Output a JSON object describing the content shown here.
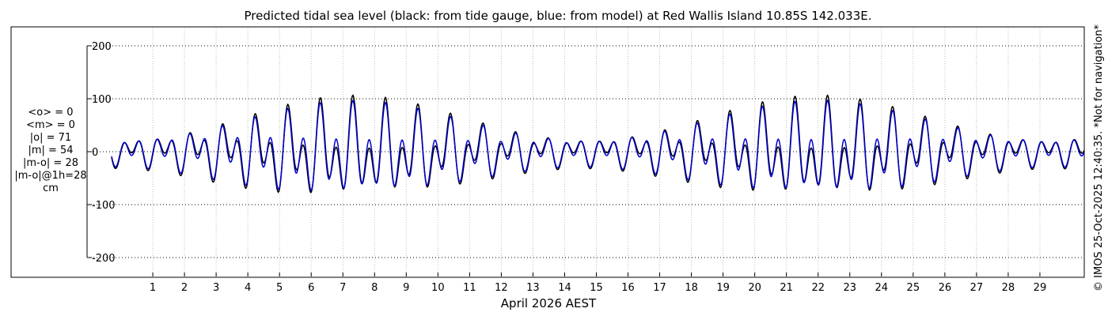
{
  "chart_data": {
    "type": "line",
    "title": "Predicted tidal sea level (black: from tide gauge, blue: from model) at Red Wallis Island 10.85S 142.033E.",
    "xlabel": "April 2026 AEST",
    "ylabel": "",
    "x_tick_labels": [
      "1",
      "2",
      "3",
      "4",
      "5",
      "6",
      "7",
      "8",
      "9",
      "10",
      "11",
      "12",
      "13",
      "14",
      "15",
      "16",
      "17",
      "18",
      "19",
      "20",
      "21",
      "22",
      "23",
      "24",
      "25",
      "26",
      "27",
      "28",
      "29"
    ],
    "y_ticks": [
      -200,
      -100,
      0,
      100,
      200
    ],
    "ylim": [
      -240,
      200
    ],
    "xlim": [
      -0.3,
      30.4
    ],
    "grid": true,
    "series": [
      {
        "color": "#000000",
        "name": "",
        "amp1": 57,
        "amp2": 50,
        "mean": 0
      },
      {
        "color": "#0000cc",
        "name": "",
        "amp1": 60,
        "amp2": 37,
        "mean": 0
      }
    ],
    "stats": [
      "<o> = 0",
      "<m> = 0",
      "|o| = 71",
      "|m| = 54",
      "|m-o| = 28",
      "|m-o|@1h=28",
      "cm"
    ],
    "side_note": "© IMOS 25-Oct-2025 12:40:35. *Not for navigation*"
  }
}
